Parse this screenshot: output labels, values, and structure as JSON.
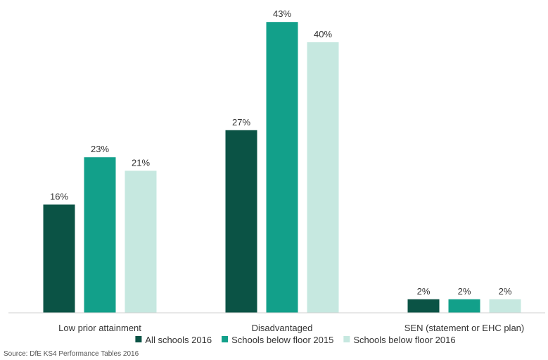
{
  "chart_data": {
    "type": "bar",
    "categories": [
      "Low prior attainment",
      "Disadvantaged",
      "SEN (statement or EHC plan)"
    ],
    "series": [
      {
        "name": "All schools 2016",
        "values": [
          16,
          27,
          2
        ],
        "labels": [
          "16%",
          "27%",
          "2%"
        ],
        "color": "#0b5345"
      },
      {
        "name": "Schools below floor 2015",
        "values": [
          23,
          43,
          2
        ],
        "labels": [
          "23%",
          "43%",
          "2%"
        ],
        "color": "#12a08a"
      },
      {
        "name": "Schools below floor 2016",
        "values": [
          21,
          40,
          2
        ],
        "labels": [
          "21%",
          "40%",
          "2%"
        ],
        "color": "#c6e8e0"
      }
    ],
    "ylim": [
      0,
      45
    ],
    "grid": false,
    "legend_position": "bottom"
  },
  "source": "Source: DfE KS4 Performance Tables 2016"
}
